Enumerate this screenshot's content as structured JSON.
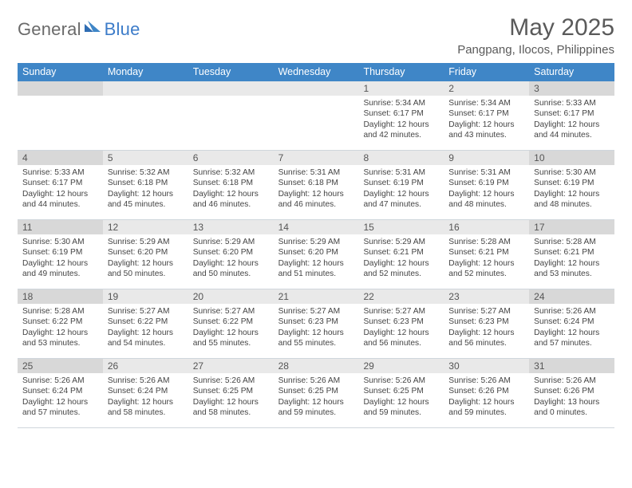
{
  "brand": {
    "part1": "General",
    "part2": "Blue"
  },
  "title": "May 2025",
  "location": "Pangpang, Ilocos, Philippines",
  "colors": {
    "header_bg": "#3f86c7",
    "weekday_bar": "#e9e9e9",
    "weekend_bar": "#d8d8d8",
    "border": "#cfd6dc",
    "text": "#444444",
    "title_text": "#5a5a5a",
    "logo_gray": "#6a6a6a",
    "logo_blue": "#3d7cc9"
  },
  "dayheads": [
    "Sunday",
    "Monday",
    "Tuesday",
    "Wednesday",
    "Thursday",
    "Friday",
    "Saturday"
  ],
  "weeks": [
    [
      {
        "date": "",
        "lines": []
      },
      {
        "date": "",
        "lines": []
      },
      {
        "date": "",
        "lines": []
      },
      {
        "date": "",
        "lines": []
      },
      {
        "date": "1",
        "lines": [
          "Sunrise: 5:34 AM",
          "Sunset: 6:17 PM",
          "Daylight: 12 hours",
          "and 42 minutes."
        ]
      },
      {
        "date": "2",
        "lines": [
          "Sunrise: 5:34 AM",
          "Sunset: 6:17 PM",
          "Daylight: 12 hours",
          "and 43 minutes."
        ]
      },
      {
        "date": "3",
        "lines": [
          "Sunrise: 5:33 AM",
          "Sunset: 6:17 PM",
          "Daylight: 12 hours",
          "and 44 minutes."
        ]
      }
    ],
    [
      {
        "date": "4",
        "lines": [
          "Sunrise: 5:33 AM",
          "Sunset: 6:17 PM",
          "Daylight: 12 hours",
          "and 44 minutes."
        ]
      },
      {
        "date": "5",
        "lines": [
          "Sunrise: 5:32 AM",
          "Sunset: 6:18 PM",
          "Daylight: 12 hours",
          "and 45 minutes."
        ]
      },
      {
        "date": "6",
        "lines": [
          "Sunrise: 5:32 AM",
          "Sunset: 6:18 PM",
          "Daylight: 12 hours",
          "and 46 minutes."
        ]
      },
      {
        "date": "7",
        "lines": [
          "Sunrise: 5:31 AM",
          "Sunset: 6:18 PM",
          "Daylight: 12 hours",
          "and 46 minutes."
        ]
      },
      {
        "date": "8",
        "lines": [
          "Sunrise: 5:31 AM",
          "Sunset: 6:19 PM",
          "Daylight: 12 hours",
          "and 47 minutes."
        ]
      },
      {
        "date": "9",
        "lines": [
          "Sunrise: 5:31 AM",
          "Sunset: 6:19 PM",
          "Daylight: 12 hours",
          "and 48 minutes."
        ]
      },
      {
        "date": "10",
        "lines": [
          "Sunrise: 5:30 AM",
          "Sunset: 6:19 PM",
          "Daylight: 12 hours",
          "and 48 minutes."
        ]
      }
    ],
    [
      {
        "date": "11",
        "lines": [
          "Sunrise: 5:30 AM",
          "Sunset: 6:19 PM",
          "Daylight: 12 hours",
          "and 49 minutes."
        ]
      },
      {
        "date": "12",
        "lines": [
          "Sunrise: 5:29 AM",
          "Sunset: 6:20 PM",
          "Daylight: 12 hours",
          "and 50 minutes."
        ]
      },
      {
        "date": "13",
        "lines": [
          "Sunrise: 5:29 AM",
          "Sunset: 6:20 PM",
          "Daylight: 12 hours",
          "and 50 minutes."
        ]
      },
      {
        "date": "14",
        "lines": [
          "Sunrise: 5:29 AM",
          "Sunset: 6:20 PM",
          "Daylight: 12 hours",
          "and 51 minutes."
        ]
      },
      {
        "date": "15",
        "lines": [
          "Sunrise: 5:29 AM",
          "Sunset: 6:21 PM",
          "Daylight: 12 hours",
          "and 52 minutes."
        ]
      },
      {
        "date": "16",
        "lines": [
          "Sunrise: 5:28 AM",
          "Sunset: 6:21 PM",
          "Daylight: 12 hours",
          "and 52 minutes."
        ]
      },
      {
        "date": "17",
        "lines": [
          "Sunrise: 5:28 AM",
          "Sunset: 6:21 PM",
          "Daylight: 12 hours",
          "and 53 minutes."
        ]
      }
    ],
    [
      {
        "date": "18",
        "lines": [
          "Sunrise: 5:28 AM",
          "Sunset: 6:22 PM",
          "Daylight: 12 hours",
          "and 53 minutes."
        ]
      },
      {
        "date": "19",
        "lines": [
          "Sunrise: 5:27 AM",
          "Sunset: 6:22 PM",
          "Daylight: 12 hours",
          "and 54 minutes."
        ]
      },
      {
        "date": "20",
        "lines": [
          "Sunrise: 5:27 AM",
          "Sunset: 6:22 PM",
          "Daylight: 12 hours",
          "and 55 minutes."
        ]
      },
      {
        "date": "21",
        "lines": [
          "Sunrise: 5:27 AM",
          "Sunset: 6:23 PM",
          "Daylight: 12 hours",
          "and 55 minutes."
        ]
      },
      {
        "date": "22",
        "lines": [
          "Sunrise: 5:27 AM",
          "Sunset: 6:23 PM",
          "Daylight: 12 hours",
          "and 56 minutes."
        ]
      },
      {
        "date": "23",
        "lines": [
          "Sunrise: 5:27 AM",
          "Sunset: 6:23 PM",
          "Daylight: 12 hours",
          "and 56 minutes."
        ]
      },
      {
        "date": "24",
        "lines": [
          "Sunrise: 5:26 AM",
          "Sunset: 6:24 PM",
          "Daylight: 12 hours",
          "and 57 minutes."
        ]
      }
    ],
    [
      {
        "date": "25",
        "lines": [
          "Sunrise: 5:26 AM",
          "Sunset: 6:24 PM",
          "Daylight: 12 hours",
          "and 57 minutes."
        ]
      },
      {
        "date": "26",
        "lines": [
          "Sunrise: 5:26 AM",
          "Sunset: 6:24 PM",
          "Daylight: 12 hours",
          "and 58 minutes."
        ]
      },
      {
        "date": "27",
        "lines": [
          "Sunrise: 5:26 AM",
          "Sunset: 6:25 PM",
          "Daylight: 12 hours",
          "and 58 minutes."
        ]
      },
      {
        "date": "28",
        "lines": [
          "Sunrise: 5:26 AM",
          "Sunset: 6:25 PM",
          "Daylight: 12 hours",
          "and 59 minutes."
        ]
      },
      {
        "date": "29",
        "lines": [
          "Sunrise: 5:26 AM",
          "Sunset: 6:25 PM",
          "Daylight: 12 hours",
          "and 59 minutes."
        ]
      },
      {
        "date": "30",
        "lines": [
          "Sunrise: 5:26 AM",
          "Sunset: 6:26 PM",
          "Daylight: 12 hours",
          "and 59 minutes."
        ]
      },
      {
        "date": "31",
        "lines": [
          "Sunrise: 5:26 AM",
          "Sunset: 6:26 PM",
          "Daylight: 13 hours",
          "and 0 minutes."
        ]
      }
    ]
  ]
}
